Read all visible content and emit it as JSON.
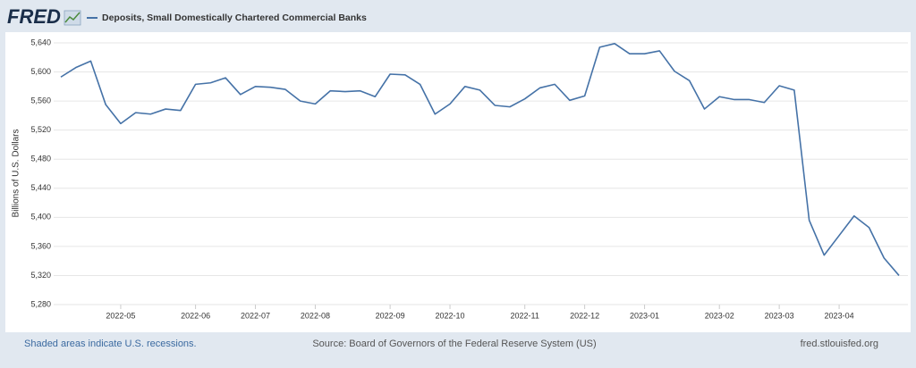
{
  "header": {
    "logo": "FRED"
  },
  "chart_data": {
    "type": "line",
    "ylabel": "Billions of U.S. Dollars",
    "categories": [
      null,
      null,
      null,
      null,
      "2022-05",
      null,
      null,
      null,
      null,
      "2022-06",
      null,
      null,
      null,
      "2022-07",
      null,
      null,
      null,
      "2022-08",
      null,
      null,
      null,
      null,
      "2022-09",
      null,
      null,
      null,
      "2022-10",
      null,
      null,
      null,
      null,
      "2022-11",
      null,
      null,
      null,
      "2022-12",
      null,
      null,
      null,
      "2023-01",
      null,
      null,
      null,
      null,
      "2023-02",
      null,
      null,
      null,
      "2023-03",
      null,
      null,
      null,
      "2023-04",
      null,
      null,
      null,
      null
    ],
    "series": [
      {
        "name": "Deposits, Small Domestically Chartered Commercial Banks",
        "color": "#4572a7",
        "values": [
          5593,
          5606,
          5615,
          5555,
          5529,
          5544,
          5542,
          5549,
          5547,
          5583,
          5585,
          5592,
          5569,
          5580,
          5579,
          5576,
          5560,
          5556,
          5574,
          5573,
          5574,
          5566,
          5597,
          5596,
          5583,
          5542,
          5556,
          5580,
          5575,
          5554,
          5552,
          5563,
          5578,
          5583,
          5561,
          5567,
          5634,
          5639,
          5625,
          5625,
          5629,
          5601,
          5588,
          5549,
          5566,
          5562,
          5562,
          5558,
          5581,
          5575,
          5396,
          5348,
          5375,
          5402,
          5386,
          5344,
          5320
        ]
      }
    ],
    "ylim": [
      5280,
      5640
    ],
    "yticks": [
      {
        "value": 5280,
        "label": "5,280"
      },
      {
        "value": 5320,
        "label": "5,320"
      },
      {
        "value": 5360,
        "label": "5,360"
      },
      {
        "value": 5400,
        "label": "5,400"
      },
      {
        "value": 5440,
        "label": "5,440"
      },
      {
        "value": 5480,
        "label": "5,480"
      },
      {
        "value": 5520,
        "label": "5,520"
      },
      {
        "value": 5560,
        "label": "5,560"
      },
      {
        "value": 5600,
        "label": "5,600"
      },
      {
        "value": 5640,
        "label": "5,640"
      }
    ],
    "grid": true
  },
  "footer": {
    "note": "Shaded areas indicate U.S. recessions.",
    "source": "Source: Board of Governors of the Federal Reserve System (US)",
    "site": "fred.stlouisfed.org"
  }
}
